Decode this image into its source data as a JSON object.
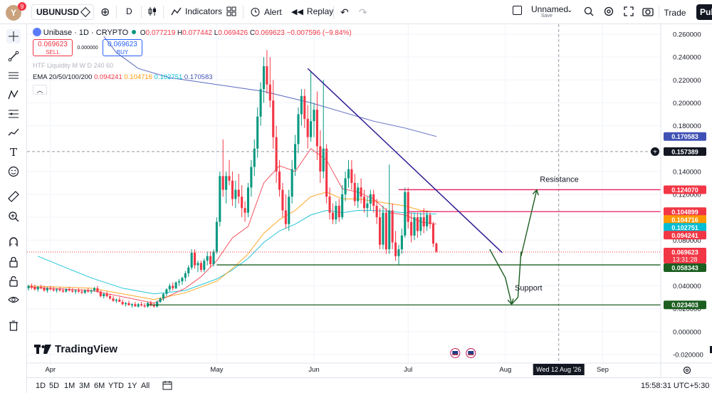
{
  "topbar": {
    "avatar_letter": "Y",
    "avatar_badge": "9",
    "symbol": "UBUNUSD",
    "interval": "D",
    "indicators_label": "Indicators",
    "alert_label": "Alert",
    "replay_label": "Replay",
    "layout_name": "Unnamed",
    "layout_save": "Save",
    "trade_label": "Trade",
    "publish_label": "Pub"
  },
  "legend": {
    "symbol_title": "Unibase · 1D · CRYPTO",
    "o_label": "O",
    "o": "0.077219",
    "h_label": "H",
    "h": "0.077442",
    "l_label": "L",
    "l": "0.069426",
    "c_label": "C",
    "c": "0.069623",
    "change": "−0.007596 (−9.84%)",
    "sell_price": "0.069623",
    "sell_label": "SELL",
    "spread": "0.000000",
    "buy_price": "0.069623",
    "buy_label": "BUY",
    "htf_label": "HTF Liquidity M W D 240 60",
    "ema_label": "EMA 20/50/100/200",
    "ema_20": "0.094241",
    "ema_50": "0.104716",
    "ema_100": "0.102751",
    "ema_200": "0.170583",
    "collapse_icon": "chevron-up-icon"
  },
  "colors": {
    "up": "#089981",
    "down": "#f23645",
    "ema20": "#f23645",
    "ema50": "#ff9800",
    "ema100": "#00bcd4",
    "ema200": "#3f51b5",
    "trend": "#311b92",
    "resistance": "#e91e63",
    "support": "#1b5e20",
    "arrow": "#1b5e20"
  },
  "chart_data": {
    "type": "candlestick",
    "y_axis_ticks": [
      "0.260000",
      "0.240000",
      "0.220000",
      "0.200000",
      "0.180000",
      "0.140000",
      "0.120000",
      "0.100000",
      "0.080000",
      "0.040000",
      "0.020000",
      "0.000000",
      "-0.020000"
    ],
    "x_axis_ticks": [
      "Apr",
      "May",
      "Jun",
      "Jul",
      "Aug",
      "Sep"
    ],
    "crosshair_date": "Wed 12 Aug '26",
    "crosshair_price": "0.157389",
    "ylim": [
      -0.025,
      0.265
    ],
    "price_labels": [
      {
        "value": 0.170583,
        "text": "0.170583",
        "color": "#3f51b5"
      },
      {
        "value": 0.12407,
        "text": "0.124070",
        "color": "#f23645"
      },
      {
        "value": 0.104899,
        "text": "0.104899",
        "color": "#f23645"
      },
      {
        "value": 0.104716,
        "text": "0.104716",
        "color": "#ff9800"
      },
      {
        "value": 0.102751,
        "text": "0.102751",
        "color": "#00bcd4"
      },
      {
        "value": 0.094241,
        "text": "0.094241",
        "color": "#f23645"
      },
      {
        "value": 0.069623,
        "text": "0.069623",
        "color": "#f23645",
        "countdown": "13:31:28"
      },
      {
        "value": 0.058343,
        "text": "0.058343",
        "color": "#1b5e20"
      },
      {
        "value": 0.023403,
        "text": "0.023403",
        "color": "#1b5e20"
      }
    ],
    "annotations": {
      "resistance_text": "Resistance",
      "support_text": "Support",
      "resistance_level": 0.12407,
      "resistance_level_2": 0.104899,
      "support_level": 0.058343,
      "support_level_2": 0.023403,
      "trendline": {
        "from": {
          "day": 89,
          "price": 0.23
        },
        "to": {
          "day": 151,
          "price": 0.069
        }
      },
      "arrow_path": [
        [
          147,
          0.072
        ],
        [
          152,
          0.047
        ],
        [
          154,
          0.024
        ],
        [
          156,
          0.03
        ],
        [
          157,
          0.07
        ],
        [
          157,
          0.066
        ],
        [
          162,
          0.124
        ]
      ]
    },
    "candles": [
      [
        0,
        0.038,
        0.041,
        0.036,
        0.04
      ],
      [
        1,
        0.04,
        0.042,
        0.037,
        0.039
      ],
      [
        2,
        0.039,
        0.041,
        0.036,
        0.037
      ],
      [
        3,
        0.037,
        0.04,
        0.035,
        0.039
      ],
      [
        4,
        0.039,
        0.041,
        0.037,
        0.038
      ],
      [
        5,
        0.038,
        0.04,
        0.035,
        0.036
      ],
      [
        6,
        0.036,
        0.039,
        0.034,
        0.038
      ],
      [
        7,
        0.038,
        0.04,
        0.036,
        0.037
      ],
      [
        8,
        0.037,
        0.039,
        0.035,
        0.036
      ],
      [
        9,
        0.036,
        0.038,
        0.034,
        0.037
      ],
      [
        10,
        0.037,
        0.039,
        0.035,
        0.036
      ],
      [
        11,
        0.036,
        0.038,
        0.034,
        0.035
      ],
      [
        12,
        0.035,
        0.038,
        0.034,
        0.037
      ],
      [
        13,
        0.037,
        0.039,
        0.035,
        0.036
      ],
      [
        14,
        0.036,
        0.038,
        0.034,
        0.035
      ],
      [
        15,
        0.035,
        0.037,
        0.033,
        0.036
      ],
      [
        16,
        0.036,
        0.038,
        0.034,
        0.035
      ],
      [
        17,
        0.035,
        0.037,
        0.033,
        0.034
      ],
      [
        18,
        0.034,
        0.037,
        0.033,
        0.036
      ],
      [
        19,
        0.036,
        0.038,
        0.034,
        0.035
      ],
      [
        20,
        0.035,
        0.037,
        0.033,
        0.036
      ],
      [
        21,
        0.036,
        0.039,
        0.035,
        0.038
      ],
      [
        22,
        0.038,
        0.04,
        0.034,
        0.035
      ],
      [
        23,
        0.035,
        0.036,
        0.03,
        0.031
      ],
      [
        24,
        0.031,
        0.034,
        0.029,
        0.033
      ],
      [
        25,
        0.033,
        0.035,
        0.03,
        0.031
      ],
      [
        26,
        0.031,
        0.033,
        0.028,
        0.029
      ],
      [
        27,
        0.029,
        0.031,
        0.026,
        0.027
      ],
      [
        28,
        0.027,
        0.029,
        0.025,
        0.028
      ],
      [
        29,
        0.028,
        0.03,
        0.026,
        0.026
      ],
      [
        30,
        0.026,
        0.028,
        0.023,
        0.024
      ],
      [
        31,
        0.024,
        0.026,
        0.022,
        0.025
      ],
      [
        32,
        0.025,
        0.027,
        0.023,
        0.023
      ],
      [
        33,
        0.023,
        0.025,
        0.021,
        0.024
      ],
      [
        34,
        0.024,
        0.026,
        0.022,
        0.022
      ],
      [
        35,
        0.022,
        0.025,
        0.021,
        0.024
      ],
      [
        36,
        0.024,
        0.026,
        0.022,
        0.023
      ],
      [
        37,
        0.023,
        0.025,
        0.021,
        0.022
      ],
      [
        38,
        0.022,
        0.026,
        0.021,
        0.025
      ],
      [
        39,
        0.025,
        0.027,
        0.022,
        0.023
      ],
      [
        40,
        0.023,
        0.025,
        0.021,
        0.022
      ],
      [
        41,
        0.022,
        0.027,
        0.021,
        0.026
      ],
      [
        42,
        0.026,
        0.03,
        0.025,
        0.029
      ],
      [
        43,
        0.029,
        0.034,
        0.027,
        0.033
      ],
      [
        44,
        0.033,
        0.038,
        0.031,
        0.037
      ],
      [
        45,
        0.037,
        0.042,
        0.035,
        0.04
      ],
      [
        46,
        0.04,
        0.043,
        0.036,
        0.038
      ],
      [
        47,
        0.038,
        0.044,
        0.037,
        0.043
      ],
      [
        48,
        0.043,
        0.046,
        0.04,
        0.044
      ],
      [
        49,
        0.044,
        0.048,
        0.041,
        0.047
      ],
      [
        50,
        0.047,
        0.053,
        0.044,
        0.051
      ],
      [
        51,
        0.051,
        0.058,
        0.048,
        0.056
      ],
      [
        52,
        0.056,
        0.072,
        0.054,
        0.069
      ],
      [
        53,
        0.069,
        0.072,
        0.055,
        0.058
      ],
      [
        54,
        0.058,
        0.062,
        0.052,
        0.06
      ],
      [
        55,
        0.06,
        0.062,
        0.052,
        0.054
      ],
      [
        56,
        0.054,
        0.064,
        0.052,
        0.062
      ],
      [
        57,
        0.062,
        0.07,
        0.058,
        0.066
      ],
      [
        58,
        0.066,
        0.07,
        0.056,
        0.059
      ],
      [
        59,
        0.059,
        0.072,
        0.057,
        0.07
      ],
      [
        60,
        0.07,
        0.1,
        0.068,
        0.096
      ],
      [
        61,
        0.096,
        0.14,
        0.092,
        0.136
      ],
      [
        62,
        0.136,
        0.168,
        0.118,
        0.124
      ],
      [
        63,
        0.124,
        0.14,
        0.112,
        0.136
      ],
      [
        64,
        0.136,
        0.15,
        0.128,
        0.132
      ],
      [
        65,
        0.132,
        0.14,
        0.11,
        0.116
      ],
      [
        66,
        0.116,
        0.132,
        0.108,
        0.124
      ],
      [
        67,
        0.124,
        0.138,
        0.112,
        0.118
      ],
      [
        68,
        0.118,
        0.128,
        0.1,
        0.108
      ],
      [
        69,
        0.108,
        0.114,
        0.096,
        0.104
      ],
      [
        70,
        0.104,
        0.13,
        0.1,
        0.126
      ],
      [
        71,
        0.126,
        0.15,
        0.118,
        0.144
      ],
      [
        72,
        0.144,
        0.168,
        0.136,
        0.16
      ],
      [
        73,
        0.16,
        0.196,
        0.152,
        0.188
      ],
      [
        74,
        0.188,
        0.218,
        0.18,
        0.212
      ],
      [
        75,
        0.212,
        0.24,
        0.2,
        0.232
      ],
      [
        76,
        0.232,
        0.246,
        0.208,
        0.216
      ],
      [
        77,
        0.216,
        0.24,
        0.196,
        0.202
      ],
      [
        78,
        0.202,
        0.22,
        0.16,
        0.17
      ],
      [
        79,
        0.17,
        0.18,
        0.13,
        0.14
      ],
      [
        80,
        0.14,
        0.15,
        0.118,
        0.124
      ],
      [
        81,
        0.124,
        0.13,
        0.1,
        0.106
      ],
      [
        82,
        0.106,
        0.12,
        0.09,
        0.094
      ],
      [
        83,
        0.094,
        0.124,
        0.088,
        0.118
      ],
      [
        84,
        0.118,
        0.15,
        0.112,
        0.142
      ],
      [
        85,
        0.142,
        0.172,
        0.136,
        0.164
      ],
      [
        86,
        0.164,
        0.196,
        0.156,
        0.19
      ],
      [
        87,
        0.19,
        0.212,
        0.18,
        0.206
      ],
      [
        88,
        0.206,
        0.212,
        0.178,
        0.186
      ],
      [
        89,
        0.186,
        0.198,
        0.16,
        0.17
      ],
      [
        90,
        0.17,
        0.228,
        0.166,
        0.184
      ],
      [
        91,
        0.184,
        0.2,
        0.17,
        0.194
      ],
      [
        92,
        0.194,
        0.21,
        0.15,
        0.162
      ],
      [
        93,
        0.162,
        0.176,
        0.13,
        0.14
      ],
      [
        94,
        0.14,
        0.22,
        0.134,
        0.16
      ],
      [
        95,
        0.16,
        0.164,
        0.112,
        0.118
      ],
      [
        96,
        0.118,
        0.126,
        0.098,
        0.104
      ],
      [
        97,
        0.104,
        0.112,
        0.094,
        0.098
      ],
      [
        98,
        0.098,
        0.114,
        0.094,
        0.11
      ],
      [
        99,
        0.11,
        0.116,
        0.096,
        0.1
      ],
      [
        100,
        0.1,
        0.128,
        0.098,
        0.12
      ],
      [
        101,
        0.12,
        0.14,
        0.114,
        0.134
      ],
      [
        102,
        0.134,
        0.15,
        0.126,
        0.142
      ],
      [
        103,
        0.142,
        0.15,
        0.124,
        0.13
      ],
      [
        104,
        0.13,
        0.138,
        0.11,
        0.114
      ],
      [
        105,
        0.114,
        0.13,
        0.108,
        0.126
      ],
      [
        106,
        0.126,
        0.134,
        0.112,
        0.118
      ],
      [
        107,
        0.118,
        0.124,
        0.104,
        0.108
      ],
      [
        108,
        0.108,
        0.118,
        0.1,
        0.112
      ],
      [
        109,
        0.112,
        0.124,
        0.106,
        0.12
      ],
      [
        110,
        0.12,
        0.124,
        0.104,
        0.11
      ],
      [
        111,
        0.11,
        0.116,
        0.094,
        0.1
      ],
      [
        112,
        0.1,
        0.108,
        0.072,
        0.076
      ],
      [
        113,
        0.076,
        0.11,
        0.072,
        0.104
      ],
      [
        114,
        0.104,
        0.108,
        0.068,
        0.072
      ],
      [
        115,
        0.072,
        0.146,
        0.068,
        0.106
      ],
      [
        116,
        0.106,
        0.112,
        0.072,
        0.078
      ],
      [
        117,
        0.078,
        0.088,
        0.062,
        0.066
      ],
      [
        118,
        0.066,
        0.076,
        0.058,
        0.072
      ],
      [
        119,
        0.072,
        0.09,
        0.068,
        0.084
      ],
      [
        120,
        0.084,
        0.126,
        0.082,
        0.122
      ],
      [
        121,
        0.122,
        0.126,
        0.09,
        0.096
      ],
      [
        122,
        0.096,
        0.104,
        0.078,
        0.084
      ],
      [
        123,
        0.084,
        0.104,
        0.08,
        0.1
      ],
      [
        124,
        0.1,
        0.104,
        0.082,
        0.088
      ],
      [
        125,
        0.088,
        0.104,
        0.084,
        0.1
      ],
      [
        126,
        0.1,
        0.108,
        0.086,
        0.092
      ],
      [
        127,
        0.092,
        0.106,
        0.088,
        0.102
      ],
      [
        128,
        0.102,
        0.104,
        0.09,
        0.094
      ],
      [
        129,
        0.094,
        0.096,
        0.074,
        0.077
      ],
      [
        130,
        0.077,
        0.078,
        0.069,
        0.07
      ]
    ],
    "ema20": [
      [
        0,
        0.039
      ],
      [
        20,
        0.036
      ],
      [
        40,
        0.025
      ],
      [
        50,
        0.038
      ],
      [
        55,
        0.048
      ],
      [
        60,
        0.062
      ],
      [
        65,
        0.082
      ],
      [
        70,
        0.092
      ],
      [
        75,
        0.13
      ],
      [
        80,
        0.145
      ],
      [
        85,
        0.14
      ],
      [
        90,
        0.16
      ],
      [
        95,
        0.15
      ],
      [
        100,
        0.125
      ],
      [
        105,
        0.122
      ],
      [
        110,
        0.116
      ],
      [
        115,
        0.104
      ],
      [
        120,
        0.102
      ],
      [
        125,
        0.096
      ],
      [
        130,
        0.094
      ]
    ],
    "ema50": [
      [
        0,
        0.04
      ],
      [
        20,
        0.038
      ],
      [
        40,
        0.028
      ],
      [
        50,
        0.034
      ],
      [
        60,
        0.044
      ],
      [
        65,
        0.055
      ],
      [
        70,
        0.068
      ],
      [
        75,
        0.086
      ],
      [
        80,
        0.098
      ],
      [
        85,
        0.106
      ],
      [
        90,
        0.118
      ],
      [
        95,
        0.122
      ],
      [
        100,
        0.116
      ],
      [
        105,
        0.116
      ],
      [
        110,
        0.114
      ],
      [
        115,
        0.112
      ],
      [
        120,
        0.11
      ],
      [
        125,
        0.106
      ],
      [
        130,
        0.1047
      ]
    ],
    "ema100": [
      [
        3,
        0.066
      ],
      [
        10,
        0.058
      ],
      [
        20,
        0.047
      ],
      [
        30,
        0.038
      ],
      [
        40,
        0.033
      ],
      [
        50,
        0.036
      ],
      [
        60,
        0.046
      ],
      [
        65,
        0.054
      ],
      [
        70,
        0.064
      ],
      [
        75,
        0.078
      ],
      [
        80,
        0.088
      ],
      [
        85,
        0.094
      ],
      [
        90,
        0.102
      ],
      [
        95,
        0.106
      ],
      [
        100,
        0.104
      ],
      [
        105,
        0.106
      ],
      [
        110,
        0.106
      ],
      [
        115,
        0.105
      ],
      [
        120,
        0.104
      ],
      [
        125,
        0.103
      ],
      [
        130,
        0.1028
      ]
    ],
    "ema200": [
      [
        24,
        0.258
      ],
      [
        28,
        0.244
      ],
      [
        35,
        0.23
      ],
      [
        45,
        0.222
      ],
      [
        60,
        0.216
      ],
      [
        75,
        0.21
      ],
      [
        90,
        0.2
      ],
      [
        100,
        0.192
      ],
      [
        110,
        0.184
      ],
      [
        120,
        0.178
      ],
      [
        130,
        0.1706
      ]
    ]
  },
  "bottombar": {
    "timeframes": [
      "1D",
      "5D",
      "1M",
      "3M",
      "6M",
      "YTD",
      "1Y",
      "All"
    ],
    "clock": "15:58:31 UTC+5:30",
    "brand": "TradingView"
  }
}
